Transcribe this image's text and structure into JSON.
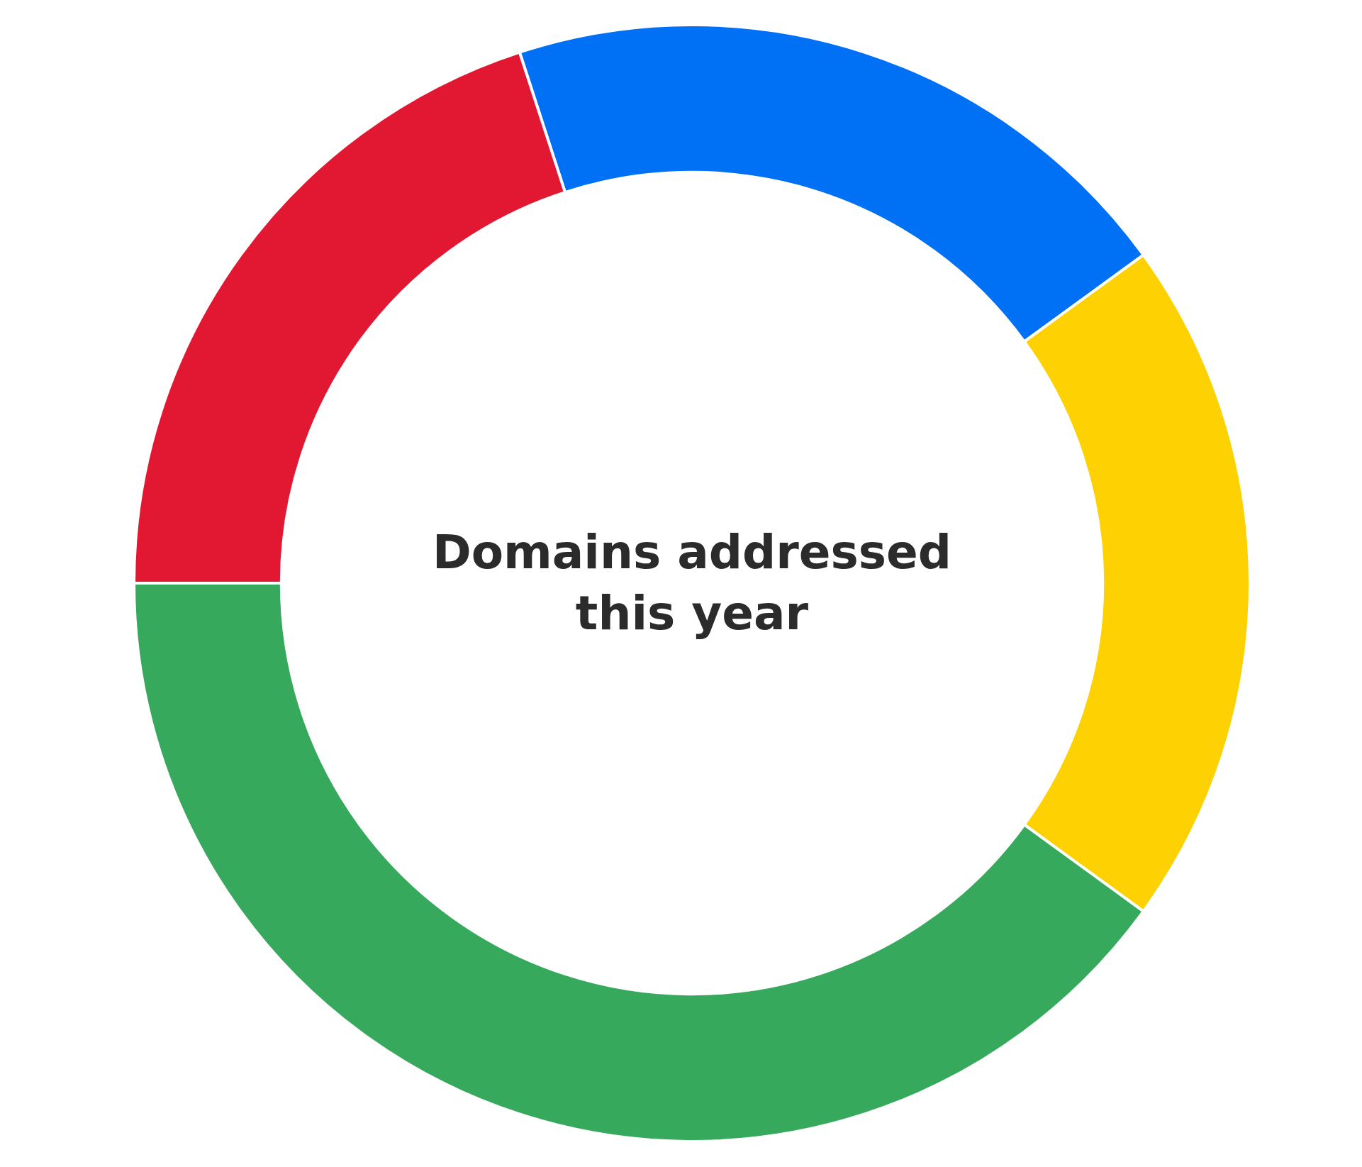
{
  "chart_data": {
    "type": "donut",
    "title": "Domains addressed this year",
    "categories": [
      null,
      null,
      null,
      null
    ],
    "values": [
      20,
      20,
      40,
      20
    ],
    "colors": [
      "#0070f5",
      "#fed102",
      "#36a95c",
      "#e21833"
    ],
    "legend": false
  }
}
